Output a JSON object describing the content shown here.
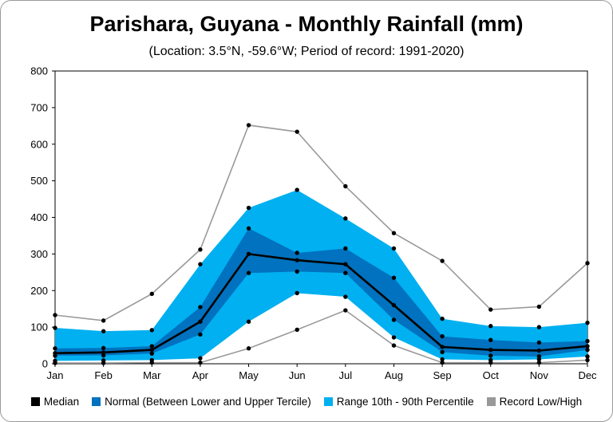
{
  "chart_data": {
    "type": "area",
    "title": "Parishara, Guyana - Monthly Rainfall (mm)",
    "subtitle": "(Location: 3.5°N, -59.6°W; Period of record: 1991-2020)",
    "categories": [
      "Jan",
      "Feb",
      "Mar",
      "Apr",
      "May",
      "Jun",
      "Jul",
      "Aug",
      "Sep",
      "Oct",
      "Nov",
      "Dec"
    ],
    "ylim": [
      0,
      800
    ],
    "yticks": [
      0,
      100,
      200,
      300,
      400,
      500,
      600,
      700,
      800
    ],
    "grid": false,
    "legend_position": "bottom",
    "series": [
      {
        "name": "Median",
        "values": [
          29,
          31,
          38,
          115,
          300,
          283,
          272,
          160,
          46,
          38,
          36,
          48
        ]
      },
      {
        "name": "Normal (Between Lower and Upper Tercile)",
        "lower": [
          22,
          23,
          28,
          80,
          248,
          252,
          248,
          120,
          32,
          22,
          20,
          38
        ],
        "upper": [
          42,
          43,
          48,
          155,
          370,
          303,
          315,
          235,
          75,
          65,
          58,
          62
        ]
      },
      {
        "name": "Range 10th - 90th Percentile",
        "lower": [
          8,
          9,
          10,
          15,
          115,
          193,
          183,
          72,
          12,
          10,
          12,
          20
        ],
        "upper": [
          98,
          89,
          92,
          272,
          426,
          475,
          397,
          315,
          123,
          103,
          100,
          112
        ]
      },
      {
        "name": "Record Low/High",
        "lower": [
          2,
          2,
          3,
          3,
          42,
          93,
          146,
          50,
          3,
          3,
          3,
          10
        ],
        "upper": [
          133,
          118,
          191,
          312,
          652,
          634,
          485,
          357,
          281,
          148,
          156,
          275
        ]
      }
    ],
    "colors": {
      "median": "#000000",
      "normal": "#0072bf",
      "range": "#00b0f0",
      "record": "#999999"
    }
  }
}
